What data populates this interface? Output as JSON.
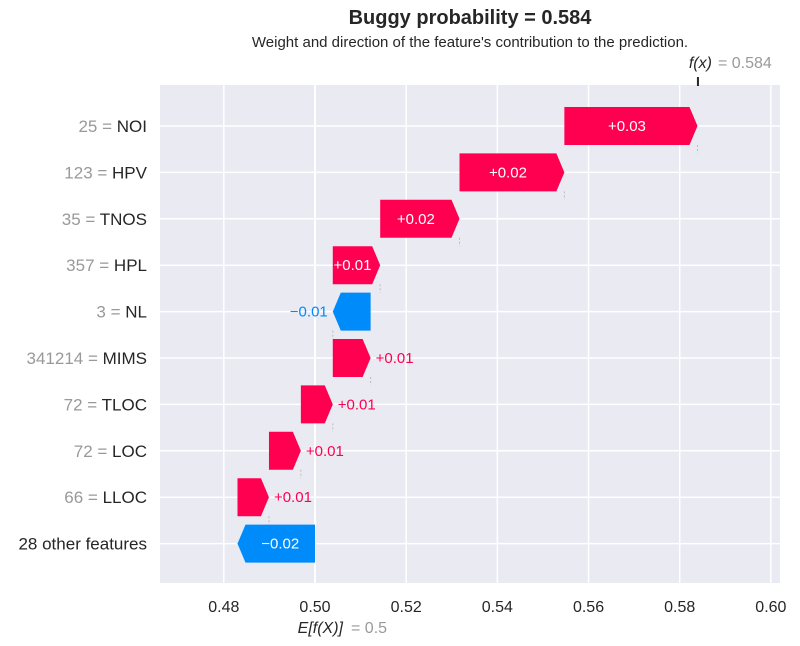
{
  "colors": {
    "positive": "#ff0051",
    "negative": "#008bfb",
    "background": "#eaeaf2",
    "grid": "#ffffff",
    "muted": "#999999",
    "text": "#262626"
  },
  "chart_data": {
    "type": "waterfall",
    "title": "Buggy probability = 0.584",
    "subtitle": "Weight and direction of the feature's contribution to the prediction.",
    "base_value": 0.5,
    "base_label": "E[f(X)]",
    "base_value_label": "= 0.5",
    "output_value": 0.584,
    "output_label": "f(x)",
    "output_value_label": "= 0.584",
    "xlim": [
      0.466,
      0.602
    ],
    "xticks": [
      0.48,
      0.5,
      0.52,
      0.54,
      0.56,
      0.58,
      0.6
    ],
    "xtick_labels": [
      "0.48",
      "0.50",
      "0.52",
      "0.54",
      "0.56",
      "0.58",
      "0.60"
    ],
    "grid": true,
    "features": [
      {
        "value": "25",
        "name": "NOI",
        "start": 0.5547,
        "end": 0.5839,
        "label": "+0.03"
      },
      {
        "value": "123",
        "name": "HPV",
        "start": 0.5317,
        "end": 0.5547,
        "label": "+0.02"
      },
      {
        "value": "35",
        "name": "TNOS",
        "start": 0.5143,
        "end": 0.5317,
        "label": "+0.02"
      },
      {
        "value": "357",
        "name": "HPL",
        "start": 0.5039,
        "end": 0.5143,
        "label": "+0.01"
      },
      {
        "value": "3",
        "name": "NL",
        "start": 0.5122,
        "end": 0.5039,
        "label": "−0.01"
      },
      {
        "value": "341214",
        "name": "MIMS",
        "start": 0.5039,
        "end": 0.5122,
        "label": "+0.01"
      },
      {
        "value": "72",
        "name": "TLOC",
        "start": 0.4969,
        "end": 0.5039,
        "label": "+0.01"
      },
      {
        "value": "72",
        "name": "LOC",
        "start": 0.4899,
        "end": 0.4969,
        "label": "+0.01"
      },
      {
        "value": "66",
        "name": "LLOC",
        "start": 0.483,
        "end": 0.4899,
        "label": "+0.01"
      },
      {
        "value": "",
        "name": "28 other features",
        "start": 0.5,
        "end": 0.483,
        "label": "−0.02"
      }
    ]
  }
}
